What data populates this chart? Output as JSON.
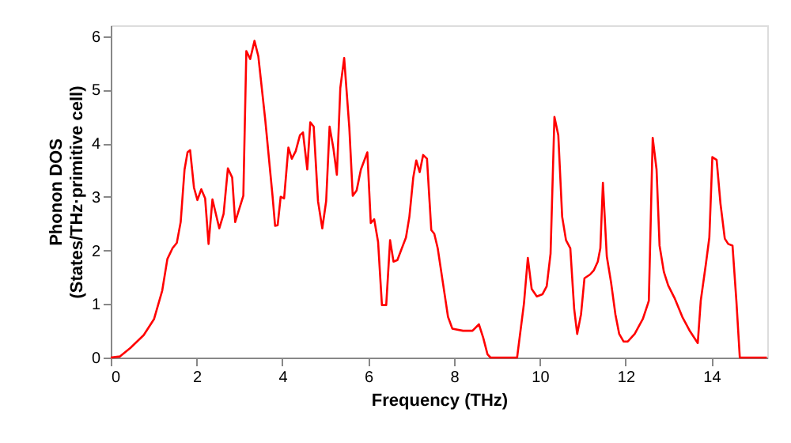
{
  "chart_data": {
    "type": "line",
    "xlabel": "Frequency (THz)",
    "ylabel": "Phonon DOS\n(States/THz·primitive cell)",
    "xlim": [
      0,
      15.3
    ],
    "ylim": [
      0,
      6.2
    ],
    "xticks": [
      0,
      2,
      4,
      6,
      8,
      10,
      12,
      14
    ],
    "yticks": [
      0,
      1,
      2,
      3,
      4,
      5,
      6
    ],
    "x": [
      0,
      0.21,
      0.46,
      0.77,
      1.01,
      1.2,
      1.32,
      1.44,
      1.54,
      1.63,
      1.72,
      1.79,
      1.85,
      1.94,
      2.02,
      2.11,
      2.2,
      2.28,
      2.37,
      2.53,
      2.63,
      2.73,
      2.83,
      2.9,
      3.09,
      3.16,
      3.25,
      3.35,
      3.44,
      3.6,
      3.77,
      3.83,
      3.89,
      3.96,
      4.04,
      4.14,
      4.22,
      4.31,
      4.41,
      4.48,
      4.58,
      4.65,
      4.73,
      4.83,
      4.93,
      5.02,
      5.1,
      5.19,
      5.27,
      5.35,
      5.44,
      5.56,
      5.64,
      5.73,
      5.83,
      5.98,
      6.06,
      6.14,
      6.23,
      6.32,
      6.42,
      6.51,
      6.59,
      6.68,
      6.88,
      6.96,
      7.05,
      7.12,
      7.2,
      7.28,
      7.37,
      7.47,
      7.54,
      7.62,
      7.74,
      7.86,
      7.96,
      8.21,
      8.43,
      8.58,
      8.68,
      8.78,
      8.85,
      9.47,
      9.63,
      9.72,
      9.81,
      9.93,
      10.06,
      10.16,
      10.25,
      10.34,
      10.43,
      10.52,
      10.61,
      10.71,
      10.8,
      10.87,
      10.96,
      11.04,
      11.17,
      11.26,
      11.35,
      11.41,
      11.47,
      11.56,
      11.66,
      11.76,
      11.85,
      11.95,
      12.05,
      12.21,
      12.4,
      12.52,
      12.54,
      12.63,
      12.72,
      12.79,
      12.89,
      12.99,
      13.14,
      13.32,
      13.5,
      13.68,
      13.75,
      13.87,
      13.95,
      14.02,
      14.12,
      14.21,
      14.31,
      14.39,
      14.49,
      14.58,
      14.66,
      15.29
    ],
    "series": [
      {
        "color": "#ff0000",
        "values": [
          0,
          0.02,
          0.18,
          0.42,
          0.72,
          1.25,
          1.84,
          2.04,
          2.14,
          2.53,
          3.51,
          3.83,
          3.87,
          3.17,
          2.94,
          3.14,
          2.97,
          2.12,
          2.95,
          2.41,
          2.68,
          3.53,
          3.36,
          2.53,
          3.02,
          5.72,
          5.57,
          5.91,
          5.62,
          4.44,
          3.02,
          2.46,
          2.47,
          3.0,
          2.97,
          3.92,
          3.71,
          3.85,
          4.15,
          4.2,
          3.51,
          4.39,
          4.31,
          2.92,
          2.41,
          2.92,
          4.31,
          3.9,
          3.41,
          5.03,
          5.59,
          4.29,
          3.02,
          3.12,
          3.51,
          3.83,
          2.51,
          2.58,
          2.16,
          0.98,
          0.98,
          2.19,
          1.79,
          1.82,
          2.24,
          2.63,
          3.36,
          3.68,
          3.46,
          3.78,
          3.71,
          2.38,
          2.31,
          2.04,
          1.4,
          0.76,
          0.54,
          0.5,
          0.5,
          0.62,
          0.37,
          0.06,
          0,
          0,
          1.01,
          1.86,
          1.28,
          1.14,
          1.18,
          1.33,
          1.94,
          4.49,
          4.15,
          2.63,
          2.19,
          2.04,
          0.91,
          0.44,
          0.81,
          1.48,
          1.55,
          1.63,
          1.79,
          2.04,
          3.26,
          1.89,
          1.4,
          0.81,
          0.44,
          0.3,
          0.3,
          0.44,
          0.72,
          1.01,
          1.06,
          4.1,
          3.51,
          2.09,
          1.6,
          1.35,
          1.11,
          0.76,
          0.49,
          0.27,
          1.06,
          1.75,
          2.24,
          3.74,
          3.69,
          2.87,
          2.22,
          2.12,
          2.09,
          1.06,
          0,
          0
        ]
      }
    ]
  }
}
